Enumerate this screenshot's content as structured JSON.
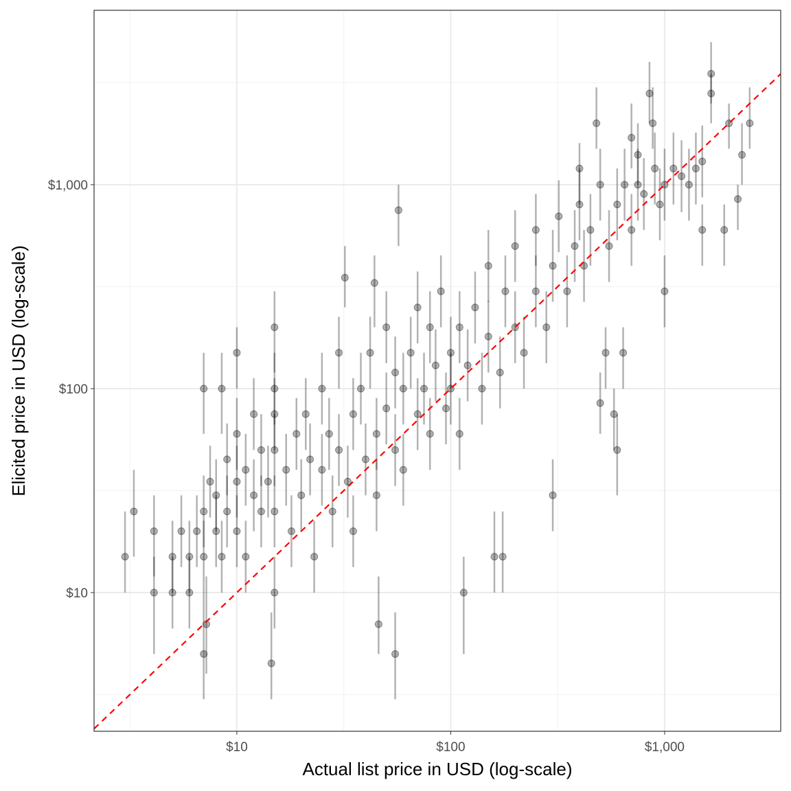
{
  "chart_data": {
    "type": "scatter",
    "title": "",
    "xlabel": "Actual list price in USD (log-scale)",
    "ylabel": "Elicited price in USD (log-scale)",
    "x_scale": "log10",
    "y_scale": "log10",
    "xlim": [
      2.15,
      3490
    ],
    "ylim": [
      2.09,
      7160
    ],
    "x_ticks": [
      {
        "value": 10,
        "label": "$10"
      },
      {
        "value": 100,
        "label": "$100"
      },
      {
        "value": 1000,
        "label": "$1,000"
      }
    ],
    "y_ticks": [
      {
        "value": 10,
        "label": "$10"
      },
      {
        "value": 100,
        "label": "$100"
      },
      {
        "value": 1000,
        "label": "$1,000"
      }
    ],
    "grid": true,
    "reference_line": {
      "type": "y = x",
      "color": "#ff0000",
      "style": "dashed"
    },
    "point_color": "#000000",
    "point_alpha": 0.3,
    "points_with_intervals": [
      [
        3.0,
        15,
        10,
        25
      ],
      [
        3.3,
        25,
        15,
        40
      ],
      [
        4.1,
        20,
        12,
        30
      ],
      [
        4.1,
        10,
        5,
        15
      ],
      [
        7.0,
        5,
        3,
        10
      ],
      [
        7.2,
        7,
        4,
        12
      ],
      [
        14.5,
        4.5,
        3,
        8
      ],
      [
        46,
        7,
        5,
        12
      ],
      [
        55,
        5,
        3,
        8
      ],
      [
        57,
        750,
        500,
        1000
      ],
      [
        32,
        350,
        250,
        500
      ],
      [
        44,
        330,
        200,
        450
      ],
      [
        15,
        200,
        120,
        300
      ],
      [
        10,
        150,
        100,
        200
      ],
      [
        8.5,
        100,
        60,
        150
      ],
      [
        7.0,
        100,
        60,
        150
      ],
      [
        580,
        75,
        50,
        100
      ],
      [
        600,
        50,
        30,
        75
      ],
      [
        500,
        85,
        60,
        120
      ],
      [
        115,
        10,
        5,
        15
      ],
      [
        300,
        30,
        20,
        45
      ],
      [
        160,
        15,
        10,
        25
      ],
      [
        175,
        15,
        10,
        25
      ],
      [
        1900,
        600,
        400,
        800
      ],
      [
        1500,
        600,
        400,
        800
      ],
      [
        2200,
        850,
        600,
        1000
      ],
      [
        2500,
        2000,
        1500,
        3000
      ],
      [
        2300,
        1400,
        1000,
        2000
      ],
      [
        2000,
        2000,
        1500,
        2500
      ],
      [
        1650,
        3500,
        2500,
        5000
      ],
      [
        1650,
        2800,
        2000,
        3500
      ],
      [
        850,
        2800,
        2000,
        4000
      ],
      [
        880,
        2000,
        1500,
        3000
      ],
      [
        480,
        2000,
        1500,
        3000
      ],
      [
        700,
        1700,
        1200,
        2500
      ],
      [
        750,
        1400,
        1000,
        2000
      ],
      [
        400,
        1200,
        800,
        1600
      ],
      [
        1000,
        300,
        200,
        450
      ],
      [
        640,
        150,
        100,
        200
      ],
      [
        530,
        150,
        100,
        200
      ]
    ],
    "cloud_interval_factor": 1.5,
    "cloud_points": [
      [
        5,
        10
      ],
      [
        5,
        15
      ],
      [
        5.5,
        20
      ],
      [
        6,
        15
      ],
      [
        6,
        10
      ],
      [
        6.5,
        20
      ],
      [
        7,
        25
      ],
      [
        7,
        15
      ],
      [
        7.5,
        35
      ],
      [
        8,
        20
      ],
      [
        8,
        30
      ],
      [
        8.5,
        15
      ],
      [
        9,
        25
      ],
      [
        9,
        45
      ],
      [
        10,
        20
      ],
      [
        10,
        35
      ],
      [
        10,
        60
      ],
      [
        11,
        40
      ],
      [
        11,
        15
      ],
      [
        12,
        30
      ],
      [
        12,
        75
      ],
      [
        13,
        25
      ],
      [
        13,
        50
      ],
      [
        14,
        35
      ],
      [
        15,
        10
      ],
      [
        15,
        25
      ],
      [
        15,
        50
      ],
      [
        15,
        75
      ],
      [
        15,
        100
      ],
      [
        17,
        40
      ],
      [
        18,
        20
      ],
      [
        19,
        60
      ],
      [
        20,
        30
      ],
      [
        21,
        75
      ],
      [
        22,
        45
      ],
      [
        23,
        15
      ],
      [
        25,
        40
      ],
      [
        25,
        100
      ],
      [
        27,
        60
      ],
      [
        28,
        25
      ],
      [
        30,
        50
      ],
      [
        30,
        150
      ],
      [
        33,
        35
      ],
      [
        35,
        75
      ],
      [
        35,
        20
      ],
      [
        38,
        100
      ],
      [
        40,
        45
      ],
      [
        42,
        150
      ],
      [
        45,
        60
      ],
      [
        45,
        30
      ],
      [
        50,
        80
      ],
      [
        50,
        200
      ],
      [
        55,
        50
      ],
      [
        55,
        120
      ],
      [
        60,
        100
      ],
      [
        60,
        40
      ],
      [
        65,
        150
      ],
      [
        70,
        75
      ],
      [
        70,
        250
      ],
      [
        75,
        100
      ],
      [
        80,
        60
      ],
      [
        80,
        200
      ],
      [
        85,
        130
      ],
      [
        90,
        300
      ],
      [
        95,
        80
      ],
      [
        100,
        100
      ],
      [
        100,
        150
      ],
      [
        110,
        200
      ],
      [
        110,
        60
      ],
      [
        120,
        130
      ],
      [
        130,
        250
      ],
      [
        140,
        100
      ],
      [
        150,
        180
      ],
      [
        150,
        400
      ],
      [
        170,
        120
      ],
      [
        180,
        300
      ],
      [
        200,
        200
      ],
      [
        200,
        500
      ],
      [
        220,
        150
      ],
      [
        250,
        300
      ],
      [
        250,
        600
      ],
      [
        280,
        200
      ],
      [
        300,
        400
      ],
      [
        320,
        700
      ],
      [
        350,
        300
      ],
      [
        380,
        500
      ],
      [
        400,
        800
      ],
      [
        420,
        400
      ],
      [
        450,
        600
      ],
      [
        500,
        1000
      ],
      [
        550,
        500
      ],
      [
        600,
        800
      ],
      [
        650,
        1000
      ],
      [
        700,
        600
      ],
      [
        750,
        1000
      ],
      [
        800,
        900
      ],
      [
        900,
        1200
      ],
      [
        950,
        800
      ],
      [
        1000,
        1000
      ],
      [
        1100,
        1200
      ],
      [
        1200,
        1100
      ],
      [
        1300,
        1000
      ],
      [
        1400,
        1200
      ],
      [
        1500,
        1300
      ]
    ]
  }
}
